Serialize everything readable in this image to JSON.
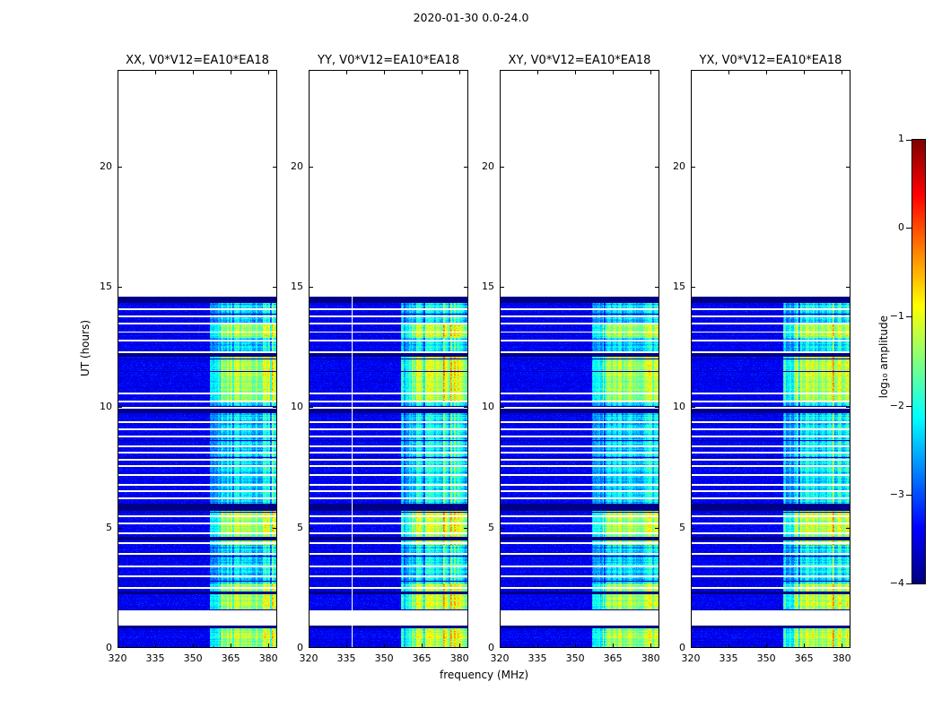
{
  "chart_data": {
    "type": "heatmap",
    "title": "2020-01-30 0.0-24.0",
    "xlabel": "frequency (MHz)",
    "ylabel": "UT (hours)",
    "xlim": [
      320,
      383.5
    ],
    "ylim": [
      0,
      24
    ],
    "xticks": [
      320,
      335,
      350,
      365,
      380
    ],
    "yticks": [
      0,
      5,
      10,
      15,
      20
    ],
    "panels": [
      {
        "title": "XX, V0*V12=EA10*EA18",
        "seed": 11
      },
      {
        "title": "YY, V0*V12=EA10*EA18",
        "seed": 22,
        "white_column_mhz": 337
      },
      {
        "title": "XY, V0*V12=EA10*EA18",
        "seed": 33
      },
      {
        "title": "YX, V0*V12=EA10*EA18",
        "seed": 44
      }
    ],
    "colorbar": {
      "label": "log₁₀ amplitude",
      "range": [
        -4,
        1
      ],
      "ticks": [
        1,
        0,
        -1,
        -2,
        -3,
        -4
      ],
      "colormap": "jet"
    },
    "coverage_hours": [
      0,
      14.6
    ],
    "background_level": -3.45,
    "rfi_band": {
      "freq_min_mhz": 356.5,
      "strong_above_mhz": 361,
      "typical_level": -2.3,
      "peak_level": -1.1
    },
    "bright_intervals_hours": [
      [
        0,
        0.9
      ],
      [
        1.6,
        2.7
      ],
      [
        4.3,
        5.7
      ],
      [
        10.3,
        12.1
      ],
      [
        12.9,
        13.5
      ]
    ],
    "white_gaps_hours": [
      [
        0.95,
        1.6
      ],
      [
        2.48,
        2.56
      ],
      [
        2.95,
        3.03
      ],
      [
        3.35,
        3.43
      ],
      [
        3.9,
        3.98
      ],
      [
        4.35,
        4.42
      ],
      [
        4.75,
        4.82
      ],
      [
        5.15,
        5.22
      ],
      [
        5.45,
        5.52
      ],
      [
        6.2,
        6.28
      ],
      [
        6.5,
        6.58
      ],
      [
        6.75,
        6.82
      ],
      [
        7.15,
        7.22
      ],
      [
        7.55,
        7.62
      ],
      [
        7.8,
        7.87
      ],
      [
        8.1,
        8.17
      ],
      [
        8.35,
        8.42
      ],
      [
        8.75,
        8.82
      ],
      [
        9.05,
        9.12
      ],
      [
        9.35,
        9.42
      ],
      [
        9.95,
        10.02
      ],
      [
        10.2,
        10.27
      ],
      [
        10.55,
        10.62
      ],
      [
        12.25,
        12.33
      ],
      [
        12.75,
        12.82
      ],
      [
        13.1,
        13.17
      ],
      [
        13.45,
        13.52
      ],
      [
        13.75,
        13.82
      ],
      [
        14.05,
        14.12
      ]
    ],
    "dark_rows_hours": [
      [
        0.85,
        0.95
      ],
      [
        2.25,
        2.38
      ],
      [
        4.5,
        4.62
      ],
      [
        5.7,
        6.0
      ],
      [
        9.78,
        9.95
      ],
      [
        12.1,
        12.25
      ],
      [
        14.35,
        14.6
      ]
    ]
  }
}
